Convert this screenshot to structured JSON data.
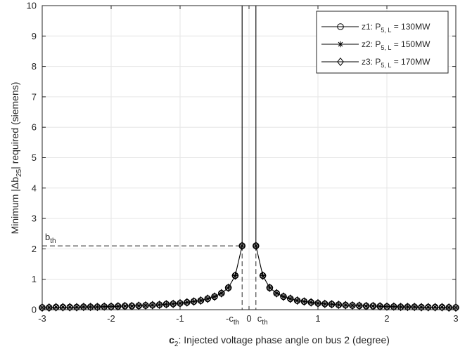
{
  "chart_data": {
    "type": "line",
    "xlabel": {
      "bold": "c",
      "sub": "2",
      "rest": ": Injected voltage phase angle on bus 2 (degree)"
    },
    "ylabel": {
      "pre": "Minimum |Δb",
      "sub": "25",
      "post": "| required (siemens)"
    },
    "xlim": [
      -3,
      3
    ],
    "ylim": [
      0,
      10
    ],
    "xticks": [
      -3,
      -2,
      -1,
      0,
      1,
      2,
      3
    ],
    "xtick_labels": [
      "-3",
      "-2",
      "-1",
      "0",
      "1",
      "2",
      "3"
    ],
    "yticks": [
      0,
      1,
      2,
      3,
      4,
      5,
      6,
      7,
      8,
      9,
      10
    ],
    "ytick_labels": [
      "0",
      "1",
      "2",
      "3",
      "4",
      "5",
      "6",
      "7",
      "8",
      "9",
      "10"
    ],
    "grid": true,
    "legend_position": "top-right",
    "thresholds": {
      "c_th": 0.1,
      "b_th": 2.1
    },
    "annotations": {
      "b_th": {
        "main": "b",
        "sub": "th"
      },
      "neg_c_th": {
        "main": "-c",
        "sub": "th"
      },
      "c_th": {
        "main": "c",
        "sub": "th"
      },
      "zero": "0"
    },
    "x": [
      -3.0,
      -2.9,
      -2.8,
      -2.7,
      -2.6,
      -2.5,
      -2.4,
      -2.3,
      -2.2,
      -2.1,
      -2.0,
      -1.9,
      -1.8,
      -1.7,
      -1.6,
      -1.5,
      -1.4,
      -1.3,
      -1.2,
      -1.1,
      -1.0,
      -0.9,
      -0.8,
      -0.7,
      -0.6,
      -0.5,
      -0.4,
      -0.3,
      -0.2,
      -0.1,
      0.1,
      0.2,
      0.3,
      0.4,
      0.5,
      0.6,
      0.7,
      0.8,
      0.9,
      1.0,
      1.1,
      1.2,
      1.3,
      1.4,
      1.5,
      1.6,
      1.7,
      1.8,
      1.9,
      2.0,
      2.1,
      2.2,
      2.3,
      2.4,
      2.5,
      2.6,
      2.7,
      2.8,
      2.9,
      3.0
    ],
    "values": [
      0.07,
      0.07,
      0.08,
      0.08,
      0.08,
      0.08,
      0.09,
      0.09,
      0.09,
      0.1,
      0.1,
      0.11,
      0.12,
      0.12,
      0.13,
      0.14,
      0.15,
      0.16,
      0.18,
      0.19,
      0.21,
      0.24,
      0.27,
      0.3,
      0.36,
      0.43,
      0.54,
      0.72,
      1.12,
      2.1,
      2.1,
      1.12,
      0.72,
      0.54,
      0.43,
      0.36,
      0.3,
      0.27,
      0.24,
      0.21,
      0.19,
      0.18,
      0.16,
      0.15,
      0.14,
      0.13,
      0.12,
      0.12,
      0.11,
      0.1,
      0.1,
      0.09,
      0.09,
      0.09,
      0.08,
      0.08,
      0.08,
      0.08,
      0.07,
      0.07
    ],
    "series": [
      {
        "name": "z1: P",
        "sub": "5, L",
        "suffix": " = 130MW",
        "marker": "circle"
      },
      {
        "name": "z2: P",
        "sub": "5, L",
        "suffix": " = 150MW",
        "marker": "asterisk"
      },
      {
        "name": "z3: P",
        "sub": "5, L",
        "suffix": " = 170MW",
        "marker": "diamond"
      }
    ]
  }
}
